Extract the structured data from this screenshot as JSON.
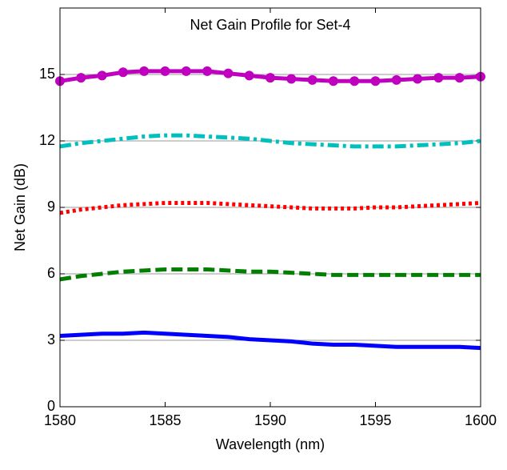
{
  "chart_data": {
    "type": "line",
    "title": "Net Gain Profile for Set-4",
    "x_label": "Wavelength (nm)",
    "y_label": "Net Gain (dB)",
    "x": [
      1580,
      1581,
      1582,
      1583,
      1584,
      1585,
      1586,
      1587,
      1588,
      1589,
      1590,
      1591,
      1592,
      1593,
      1594,
      1595,
      1596,
      1597,
      1598,
      1599,
      1600
    ],
    "series": [
      {
        "color": "#0000ff",
        "dash": "solid",
        "marker": "none",
        "values": [
          3.2,
          3.25,
          3.3,
          3.3,
          3.35,
          3.3,
          3.25,
          3.2,
          3.15,
          3.05,
          3.0,
          2.95,
          2.85,
          2.8,
          2.8,
          2.75,
          2.7,
          2.7,
          2.7,
          2.7,
          2.65
        ]
      },
      {
        "color": "#007f00",
        "dash": "dashed",
        "marker": "none",
        "values": [
          5.75,
          5.9,
          6.0,
          6.1,
          6.15,
          6.2,
          6.2,
          6.2,
          6.15,
          6.1,
          6.1,
          6.05,
          6.0,
          5.95,
          5.95,
          5.95,
          5.95,
          5.95,
          5.95,
          5.95,
          5.95
        ]
      },
      {
        "color": "#ff0000",
        "dash": "dotted",
        "marker": "none",
        "values": [
          8.75,
          8.9,
          9.0,
          9.1,
          9.15,
          9.2,
          9.2,
          9.2,
          9.15,
          9.1,
          9.05,
          9.0,
          8.95,
          8.95,
          8.95,
          9.0,
          9.0,
          9.05,
          9.1,
          9.15,
          9.2
        ]
      },
      {
        "color": "#00bfbf",
        "dash": "dashdot",
        "marker": "none",
        "values": [
          11.75,
          11.9,
          12.0,
          12.1,
          12.2,
          12.25,
          12.25,
          12.2,
          12.15,
          12.1,
          12.0,
          11.9,
          11.85,
          11.8,
          11.75,
          11.75,
          11.75,
          11.8,
          11.85,
          11.9,
          12.0
        ]
      },
      {
        "color": "#bf00bf",
        "dash": "solid",
        "marker": "circle",
        "values": [
          14.7,
          14.85,
          14.95,
          15.1,
          15.15,
          15.15,
          15.15,
          15.15,
          15.05,
          14.95,
          14.85,
          14.8,
          14.75,
          14.7,
          14.7,
          14.7,
          14.75,
          14.8,
          14.85,
          14.85,
          14.9
        ]
      }
    ],
    "xlim": [
      1580,
      1600
    ],
    "xticks": [
      1580,
      1585,
      1590,
      1595,
      1600
    ],
    "ylim": [
      0,
      18
    ],
    "yticks": [
      0,
      3,
      6,
      9,
      12,
      15
    ],
    "grid": true
  }
}
